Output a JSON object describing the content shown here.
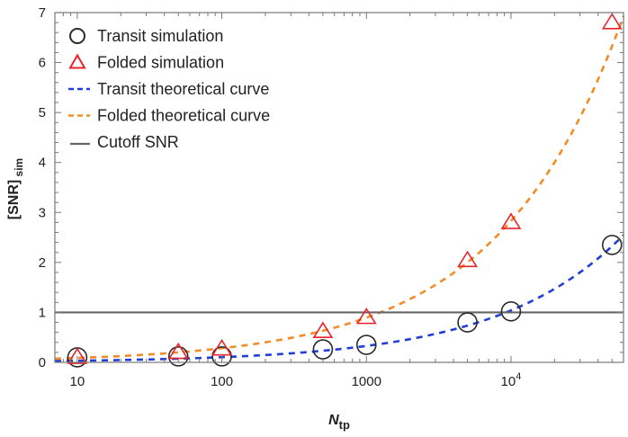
{
  "chart_data": {
    "type": "scatter",
    "x_scale": "log",
    "xlim": [
      7,
      60000
    ],
    "ylim": [
      0,
      7
    ],
    "xlabel": "N",
    "xlabel_sub": "tp",
    "ylabel": "[SNR]",
    "ylabel_sub": "sim",
    "x_ticks": [
      {
        "value": 10,
        "label": "10",
        "sup": ""
      },
      {
        "value": 100,
        "label": "100",
        "sup": ""
      },
      {
        "value": 1000,
        "label": "1000",
        "sup": ""
      },
      {
        "value": 10000,
        "label": "10",
        "sup": "4"
      }
    ],
    "y_ticks": [
      0,
      1,
      2,
      3,
      4,
      5,
      6,
      7
    ],
    "legend_position": "top-left",
    "series": [
      {
        "name": "Transit simulation",
        "kind": "points",
        "marker": "circle",
        "color": "#2b2b2b",
        "x": [
          10,
          50,
          100,
          500,
          1000,
          5000,
          10000,
          50000
        ],
        "y": [
          0.1,
          0.12,
          0.12,
          0.26,
          0.35,
          0.8,
          1.02,
          2.35
        ]
      },
      {
        "name": "Folded simulation",
        "kind": "points",
        "marker": "triangle",
        "color": "#e8242a",
        "x": [
          10,
          50,
          100,
          500,
          1000,
          5000,
          10000,
          50000
        ],
        "y": [
          0.1,
          0.2,
          0.27,
          0.62,
          0.9,
          2.04,
          2.8,
          6.8
        ]
      },
      {
        "name": "Transit theoretical curve",
        "kind": "curve",
        "style": "dashed",
        "color": "#1f3fd6",
        "formula": "a*sqrt(x)",
        "coef": 0.0104
      },
      {
        "name": "Folded theoretical curve",
        "kind": "curve",
        "style": "dashed",
        "color": "#f28c28",
        "formula": "a*sqrt(x)",
        "coef": 0.0283
      },
      {
        "name": "Cutoff SNR",
        "kind": "hline",
        "style": "solid",
        "color": "#666666",
        "y": 1
      }
    ]
  }
}
